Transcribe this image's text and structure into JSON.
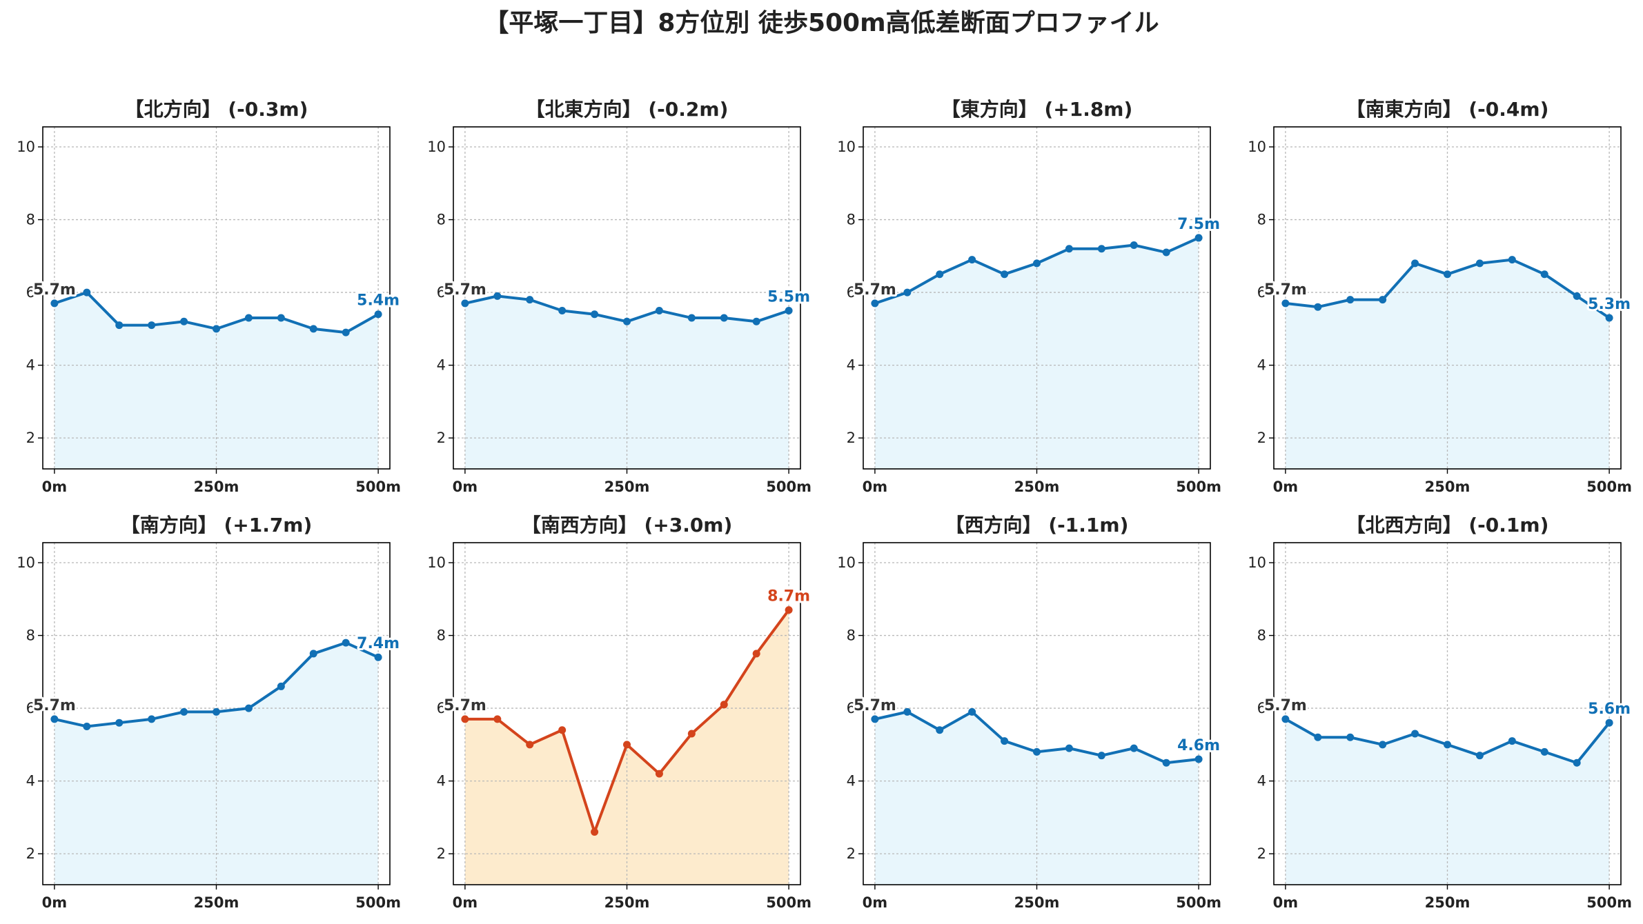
{
  "title": "【平塚一丁目】8方位別 徒歩500m高低差断面プロファイル",
  "colors": {
    "normal_line": "#1170b5",
    "normal_fill": "#e8f6fc",
    "highlight_line": "#d4441c",
    "highlight_fill": "#fdebcd",
    "start_label": "#333333"
  },
  "chart_data": [
    {
      "type": "line",
      "title": "【北方向】 (-0.3m)",
      "x": [
        0,
        50,
        100,
        150,
        200,
        250,
        300,
        350,
        400,
        450,
        500
      ],
      "values": [
        5.7,
        6.0,
        5.1,
        5.1,
        5.2,
        5.0,
        5.3,
        5.3,
        5.0,
        4.9,
        5.4
      ],
      "start_label": "5.7m",
      "end_label": "5.4m",
      "highlight": false,
      "xticks": [
        "0m",
        "250m",
        "500m"
      ],
      "yticks": [
        2,
        4,
        6,
        8,
        10
      ],
      "xlim": [
        -18,
        518
      ],
      "ylim": [
        1.15,
        10.55
      ],
      "grid": true
    },
    {
      "type": "line",
      "title": "【北東方向】 (-0.2m)",
      "x": [
        0,
        50,
        100,
        150,
        200,
        250,
        300,
        350,
        400,
        450,
        500
      ],
      "values": [
        5.7,
        5.9,
        5.8,
        5.5,
        5.4,
        5.2,
        5.5,
        5.3,
        5.3,
        5.2,
        5.5
      ],
      "start_label": "5.7m",
      "end_label": "5.5m",
      "highlight": false,
      "xticks": [
        "0m",
        "250m",
        "500m"
      ],
      "yticks": [
        2,
        4,
        6,
        8,
        10
      ],
      "xlim": [
        -18,
        518
      ],
      "ylim": [
        1.15,
        10.55
      ],
      "grid": true
    },
    {
      "type": "line",
      "title": "【東方向】 (+1.8m)",
      "x": [
        0,
        50,
        100,
        150,
        200,
        250,
        300,
        350,
        400,
        450,
        500
      ],
      "values": [
        5.7,
        6.0,
        6.5,
        6.9,
        6.5,
        6.8,
        7.2,
        7.2,
        7.3,
        7.1,
        7.5
      ],
      "start_label": "5.7m",
      "end_label": "7.5m",
      "highlight": false,
      "xticks": [
        "0m",
        "250m",
        "500m"
      ],
      "yticks": [
        2,
        4,
        6,
        8,
        10
      ],
      "xlim": [
        -18,
        518
      ],
      "ylim": [
        1.15,
        10.55
      ],
      "grid": true
    },
    {
      "type": "line",
      "title": "【南東方向】 (-0.4m)",
      "x": [
        0,
        50,
        100,
        150,
        200,
        250,
        300,
        350,
        400,
        450,
        500
      ],
      "values": [
        5.7,
        5.6,
        5.8,
        5.8,
        6.8,
        6.5,
        6.8,
        6.9,
        6.5,
        5.9,
        5.3
      ],
      "start_label": "5.7m",
      "end_label": "5.3m",
      "highlight": false,
      "xticks": [
        "0m",
        "250m",
        "500m"
      ],
      "yticks": [
        2,
        4,
        6,
        8,
        10
      ],
      "xlim": [
        -18,
        518
      ],
      "ylim": [
        1.15,
        10.55
      ],
      "grid": true
    },
    {
      "type": "line",
      "title": "【南方向】 (+1.7m)",
      "x": [
        0,
        50,
        100,
        150,
        200,
        250,
        300,
        350,
        400,
        450,
        500
      ],
      "values": [
        5.7,
        5.5,
        5.6,
        5.7,
        5.9,
        5.9,
        6.0,
        6.6,
        7.5,
        7.8,
        7.4
      ],
      "start_label": "5.7m",
      "end_label": "7.4m",
      "highlight": false,
      "xticks": [
        "0m",
        "250m",
        "500m"
      ],
      "yticks": [
        2,
        4,
        6,
        8,
        10
      ],
      "xlim": [
        -18,
        518
      ],
      "ylim": [
        1.15,
        10.55
      ],
      "grid": true
    },
    {
      "type": "line",
      "title": "【南西方向】 (+3.0m)",
      "x": [
        0,
        50,
        100,
        150,
        200,
        250,
        300,
        350,
        400,
        450,
        500
      ],
      "values": [
        5.7,
        5.7,
        5.0,
        5.4,
        2.6,
        5.0,
        4.2,
        5.3,
        6.1,
        7.5,
        8.7
      ],
      "start_label": "5.7m",
      "end_label": "8.7m",
      "highlight": true,
      "xticks": [
        "0m",
        "250m",
        "500m"
      ],
      "yticks": [
        2,
        4,
        6,
        8,
        10
      ],
      "xlim": [
        -18,
        518
      ],
      "ylim": [
        1.15,
        10.55
      ],
      "grid": true
    },
    {
      "type": "line",
      "title": "【西方向】 (-1.1m)",
      "x": [
        0,
        50,
        100,
        150,
        200,
        250,
        300,
        350,
        400,
        450,
        500
      ],
      "values": [
        5.7,
        5.9,
        5.4,
        5.9,
        5.1,
        4.8,
        4.9,
        4.7,
        4.9,
        4.5,
        4.6
      ],
      "start_label": "5.7m",
      "end_label": "4.6m",
      "highlight": false,
      "xticks": [
        "0m",
        "250m",
        "500m"
      ],
      "yticks": [
        2,
        4,
        6,
        8,
        10
      ],
      "xlim": [
        -18,
        518
      ],
      "ylim": [
        1.15,
        10.55
      ],
      "grid": true
    },
    {
      "type": "line",
      "title": "【北西方向】 (-0.1m)",
      "x": [
        0,
        50,
        100,
        150,
        200,
        250,
        300,
        350,
        400,
        450,
        500
      ],
      "values": [
        5.7,
        5.2,
        5.2,
        5.0,
        5.3,
        5.0,
        4.7,
        5.1,
        4.8,
        4.5,
        5.6
      ],
      "start_label": "5.7m",
      "end_label": "5.6m",
      "highlight": false,
      "xticks": [
        "0m",
        "250m",
        "500m"
      ],
      "yticks": [
        2,
        4,
        6,
        8,
        10
      ],
      "xlim": [
        -18,
        518
      ],
      "ylim": [
        1.15,
        10.55
      ],
      "grid": true
    }
  ]
}
